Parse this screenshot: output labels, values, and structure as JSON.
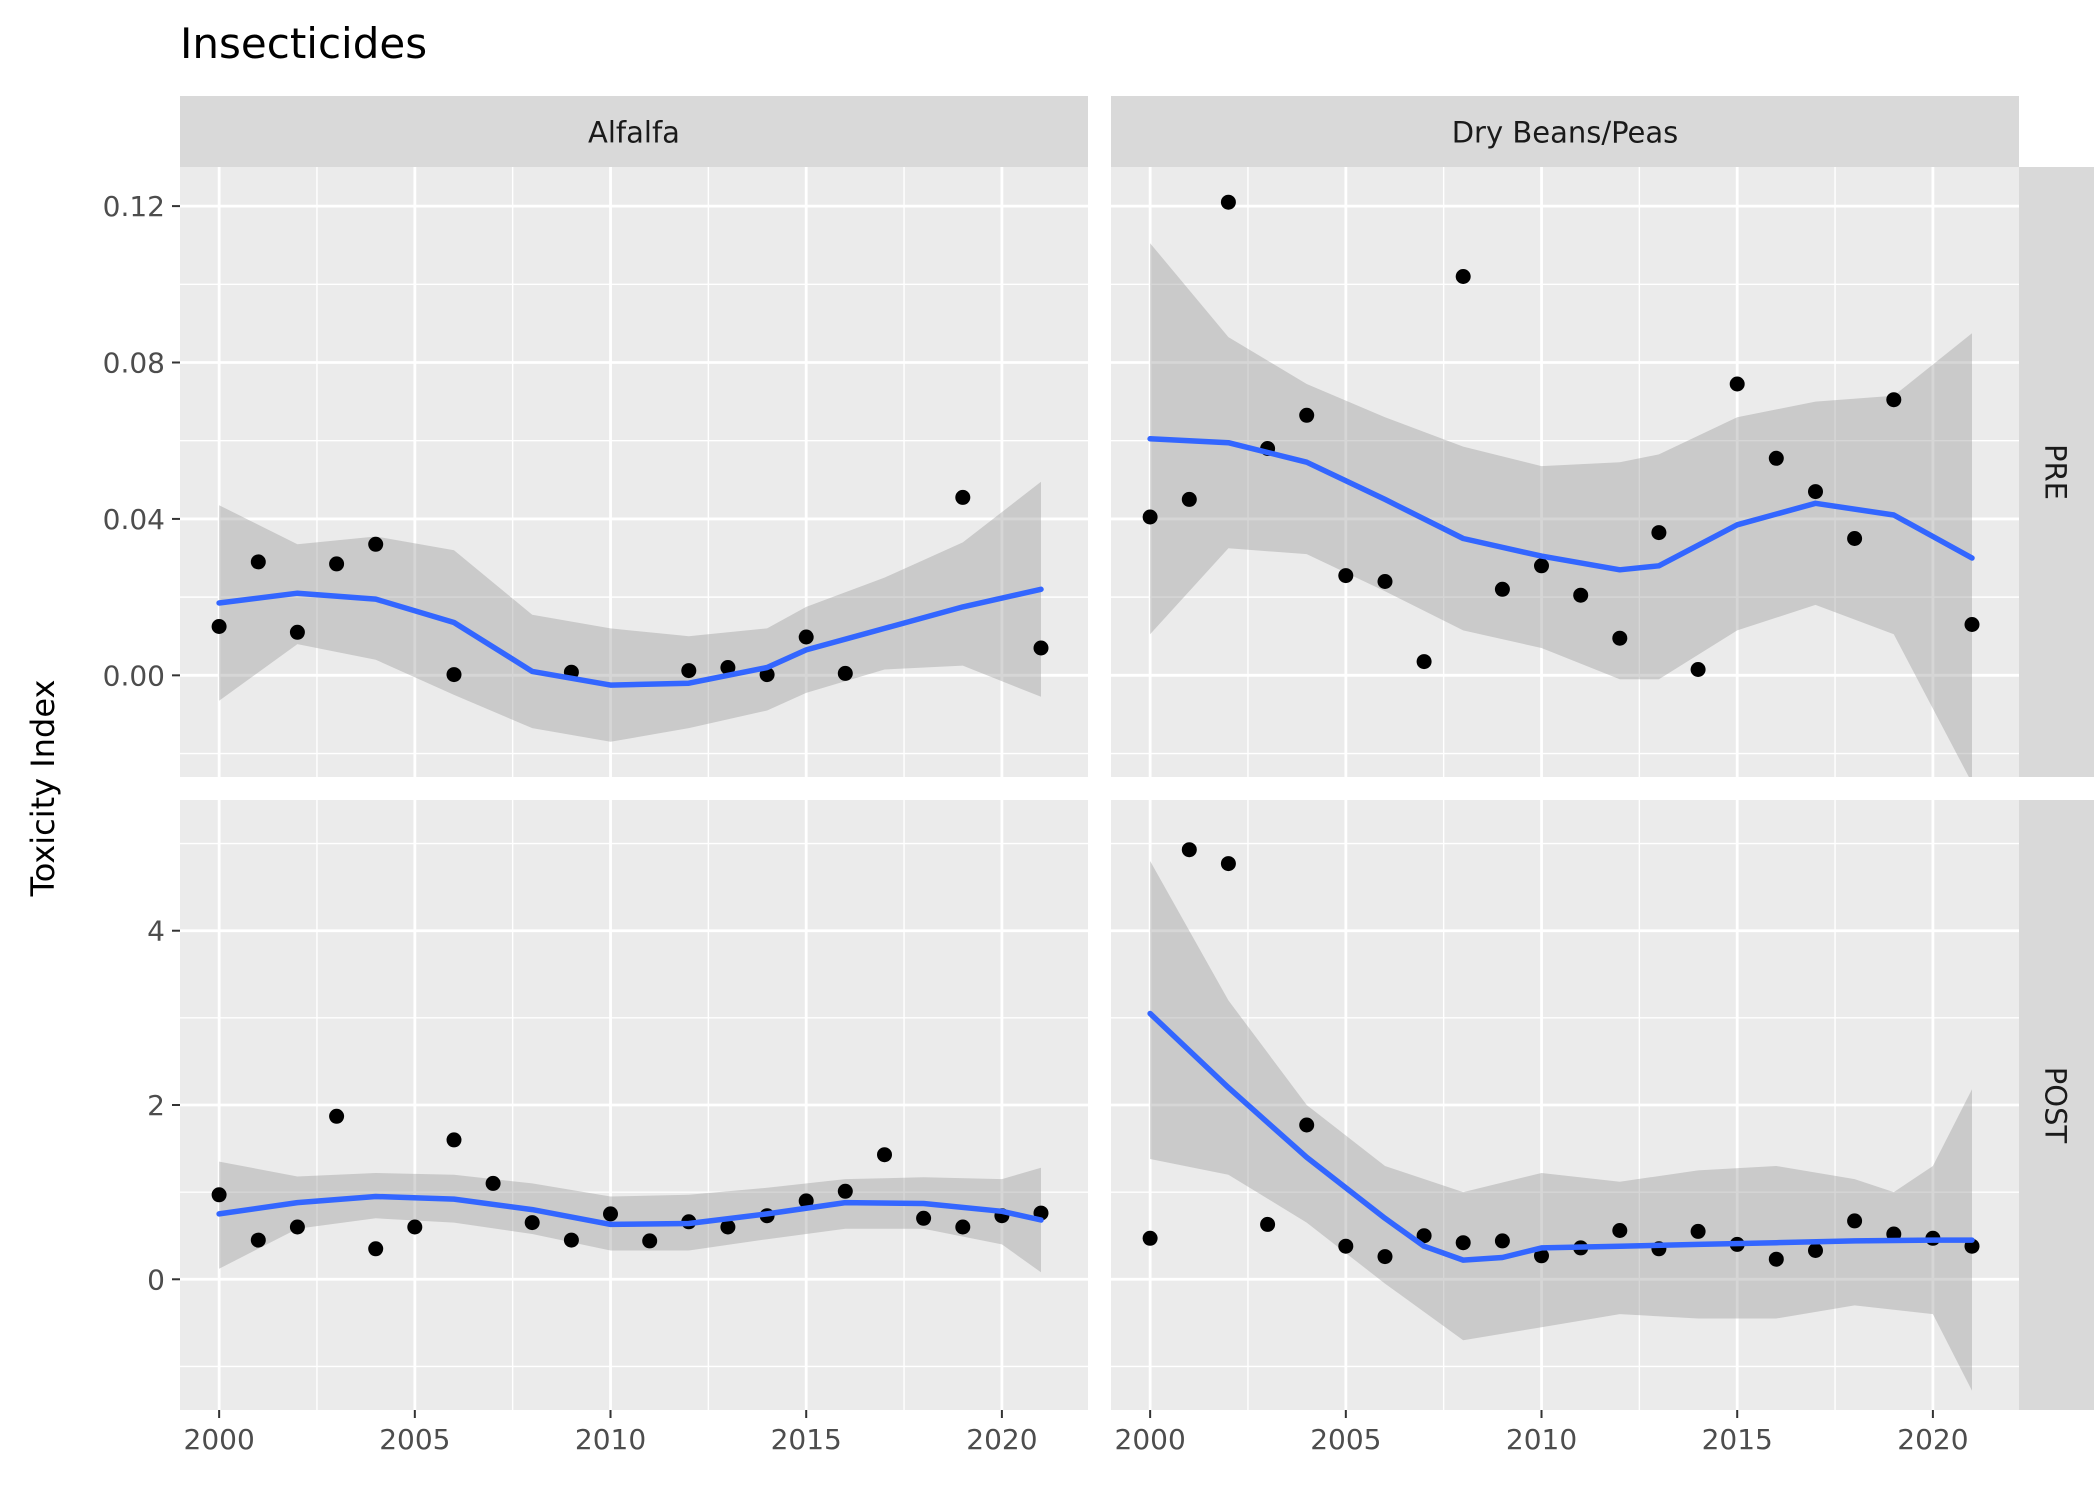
{
  "chart_data": {
    "type": "scatter",
    "title": "Insecticides",
    "xlabel": "",
    "ylabel": "Toxicity Index",
    "grid": true,
    "facet_columns": [
      "Alfalfa",
      "Dry Beans/Peas"
    ],
    "facet_rows": [
      "PRE",
      "POST"
    ],
    "x_ticks": [
      2000,
      2005,
      2010,
      2015,
      2020
    ],
    "x_range": [
      1999,
      2022.2
    ],
    "rows": [
      {
        "y_range": [
          -0.026,
          0.13
        ],
        "y_ticks": [
          0,
          0.04,
          0.08,
          0.12
        ],
        "y_tick_labels": [
          "0.00",
          "0.04",
          "0.08",
          "0.12"
        ]
      },
      {
        "y_range": [
          -1.5,
          5.5
        ],
        "y_ticks": [
          0,
          2,
          4
        ],
        "y_tick_labels": [
          "0",
          "2",
          "4"
        ]
      }
    ],
    "panels": [
      {
        "col": "Alfalfa",
        "row": "PRE",
        "points": [
          [
            2000,
            0.0125
          ],
          [
            2001,
            0.029
          ],
          [
            2002,
            0.011
          ],
          [
            2003,
            0.0285
          ],
          [
            2004,
            0.0335
          ],
          [
            2006,
            0.0002
          ],
          [
            2009,
            0.0008
          ],
          [
            2012,
            0.0012
          ],
          [
            2013,
            0.002
          ],
          [
            2014,
            0.0002
          ],
          [
            2015,
            0.0098
          ],
          [
            2016,
            0.0005
          ],
          [
            2019,
            0.0455
          ],
          [
            2021,
            0.007
          ]
        ],
        "smooth": [
          [
            2000,
            0.0185
          ],
          [
            2002,
            0.021
          ],
          [
            2004,
            0.0195
          ],
          [
            2006,
            0.0135
          ],
          [
            2008,
            0.001
          ],
          [
            2010,
            -0.0025
          ],
          [
            2012,
            -0.002
          ],
          [
            2014,
            0.002
          ],
          [
            2015,
            0.0065
          ],
          [
            2017,
            0.012
          ],
          [
            2019,
            0.0175
          ],
          [
            2021,
            0.022
          ]
        ],
        "band_upper": [
          [
            2000,
            0.0435
          ],
          [
            2002,
            0.0335
          ],
          [
            2004,
            0.0355
          ],
          [
            2006,
            0.032
          ],
          [
            2008,
            0.0155
          ],
          [
            2010,
            0.012
          ],
          [
            2012,
            0.01
          ],
          [
            2014,
            0.012
          ],
          [
            2015,
            0.0175
          ],
          [
            2017,
            0.025
          ],
          [
            2019,
            0.034
          ],
          [
            2021,
            0.0495
          ]
        ],
        "band_lower": [
          [
            2000,
            -0.0065
          ],
          [
            2002,
            0.008
          ],
          [
            2004,
            0.004
          ],
          [
            2006,
            -0.005
          ],
          [
            2008,
            -0.0135
          ],
          [
            2010,
            -0.017
          ],
          [
            2012,
            -0.0135
          ],
          [
            2014,
            -0.009
          ],
          [
            2015,
            -0.0045
          ],
          [
            2017,
            0.0015
          ],
          [
            2019,
            0.0025
          ],
          [
            2021,
            -0.0055
          ]
        ]
      },
      {
        "col": "Dry Beans/Peas",
        "row": "PRE",
        "points": [
          [
            2000,
            0.0405
          ],
          [
            2001,
            0.045
          ],
          [
            2002,
            0.121
          ],
          [
            2003,
            0.058
          ],
          [
            2004,
            0.0665
          ],
          [
            2005,
            0.0255
          ],
          [
            2006,
            0.024
          ],
          [
            2007,
            0.0035
          ],
          [
            2008,
            0.102
          ],
          [
            2009,
            0.022
          ],
          [
            2010,
            0.028
          ],
          [
            2011,
            0.0205
          ],
          [
            2012,
            0.0095
          ],
          [
            2013,
            0.0365
          ],
          [
            2014,
            0.0015
          ],
          [
            2015,
            0.0745
          ],
          [
            2016,
            0.0555
          ],
          [
            2017,
            0.047
          ],
          [
            2018,
            0.035
          ],
          [
            2019,
            0.0705
          ],
          [
            2021,
            0.013
          ]
        ],
        "smooth": [
          [
            2000,
            0.0605
          ],
          [
            2002,
            0.0595
          ],
          [
            2004,
            0.0545
          ],
          [
            2006,
            0.045
          ],
          [
            2008,
            0.035
          ],
          [
            2010,
            0.0305
          ],
          [
            2012,
            0.027
          ],
          [
            2013,
            0.028
          ],
          [
            2015,
            0.0385
          ],
          [
            2017,
            0.044
          ],
          [
            2019,
            0.041
          ],
          [
            2021,
            0.03
          ]
        ],
        "band_upper": [
          [
            2000,
            0.1105
          ],
          [
            2002,
            0.0865
          ],
          [
            2004,
            0.0745
          ],
          [
            2006,
            0.066
          ],
          [
            2008,
            0.0585
          ],
          [
            2010,
            0.0535
          ],
          [
            2012,
            0.0545
          ],
          [
            2013,
            0.0565
          ],
          [
            2015,
            0.066
          ],
          [
            2017,
            0.07
          ],
          [
            2019,
            0.0715
          ],
          [
            2021,
            0.0875
          ]
        ],
        "band_lower": [
          [
            2000,
            0.0105
          ],
          [
            2002,
            0.0325
          ],
          [
            2004,
            0.031
          ],
          [
            2006,
            0.0215
          ],
          [
            2008,
            0.0115
          ],
          [
            2010,
            0.007
          ],
          [
            2012,
            -0.001
          ],
          [
            2013,
            -0.001
          ],
          [
            2015,
            0.0115
          ],
          [
            2017,
            0.018
          ],
          [
            2019,
            0.0105
          ],
          [
            2021,
            -0.0275
          ]
        ]
      },
      {
        "col": "Alfalfa",
        "row": "POST",
        "points": [
          [
            2000,
            0.97
          ],
          [
            2001,
            0.45
          ],
          [
            2002,
            0.6
          ],
          [
            2003,
            1.87
          ],
          [
            2004,
            0.35
          ],
          [
            2005,
            0.6
          ],
          [
            2006,
            1.6
          ],
          [
            2007,
            1.1
          ],
          [
            2008,
            0.65
          ],
          [
            2009,
            0.45
          ],
          [
            2010,
            0.75
          ],
          [
            2011,
            0.44
          ],
          [
            2012,
            0.66
          ],
          [
            2013,
            0.6
          ],
          [
            2014,
            0.73
          ],
          [
            2015,
            0.9
          ],
          [
            2016,
            1.01
          ],
          [
            2017,
            1.43
          ],
          [
            2018,
            0.7
          ],
          [
            2019,
            0.6
          ],
          [
            2020,
            0.73
          ],
          [
            2021,
            0.76
          ]
        ],
        "smooth": [
          [
            2000,
            0.75
          ],
          [
            2002,
            0.88
          ],
          [
            2004,
            0.95
          ],
          [
            2006,
            0.92
          ],
          [
            2008,
            0.8
          ],
          [
            2010,
            0.63
          ],
          [
            2012,
            0.64
          ],
          [
            2014,
            0.75
          ],
          [
            2016,
            0.88
          ],
          [
            2018,
            0.87
          ],
          [
            2020,
            0.78
          ],
          [
            2021,
            0.68
          ]
        ],
        "band_upper": [
          [
            2000,
            1.35
          ],
          [
            2002,
            1.18
          ],
          [
            2004,
            1.22
          ],
          [
            2006,
            1.2
          ],
          [
            2008,
            1.1
          ],
          [
            2010,
            0.95
          ],
          [
            2012,
            0.97
          ],
          [
            2014,
            1.05
          ],
          [
            2016,
            1.15
          ],
          [
            2018,
            1.17
          ],
          [
            2020,
            1.15
          ],
          [
            2021,
            1.28
          ]
        ],
        "band_lower": [
          [
            2000,
            0.12
          ],
          [
            2002,
            0.58
          ],
          [
            2004,
            0.7
          ],
          [
            2006,
            0.65
          ],
          [
            2008,
            0.52
          ],
          [
            2010,
            0.33
          ],
          [
            2012,
            0.33
          ],
          [
            2014,
            0.46
          ],
          [
            2016,
            0.58
          ],
          [
            2018,
            0.58
          ],
          [
            2020,
            0.4
          ],
          [
            2021,
            0.08
          ]
        ]
      },
      {
        "col": "Dry Beans/Peas",
        "row": "POST",
        "points": [
          [
            2000,
            0.47
          ],
          [
            2001,
            4.93
          ],
          [
            2002,
            4.77
          ],
          [
            2003,
            0.63
          ],
          [
            2004,
            1.77
          ],
          [
            2005,
            0.38
          ],
          [
            2006,
            0.26
          ],
          [
            2007,
            0.5
          ],
          [
            2008,
            0.42
          ],
          [
            2009,
            0.44
          ],
          [
            2010,
            0.27
          ],
          [
            2011,
            0.36
          ],
          [
            2012,
            0.56
          ],
          [
            2013,
            0.35
          ],
          [
            2014,
            0.55
          ],
          [
            2015,
            0.4
          ],
          [
            2016,
            0.23
          ],
          [
            2017,
            0.33
          ],
          [
            2018,
            0.67
          ],
          [
            2019,
            0.52
          ],
          [
            2020,
            0.47
          ],
          [
            2021,
            0.38
          ]
        ],
        "smooth": [
          [
            2000,
            3.05
          ],
          [
            2002,
            2.2
          ],
          [
            2004,
            1.4
          ],
          [
            2006,
            0.7
          ],
          [
            2007,
            0.38
          ],
          [
            2008,
            0.22
          ],
          [
            2009,
            0.25
          ],
          [
            2010,
            0.36
          ],
          [
            2012,
            0.38
          ],
          [
            2014,
            0.4
          ],
          [
            2016,
            0.42
          ],
          [
            2018,
            0.44
          ],
          [
            2020,
            0.45
          ],
          [
            2021,
            0.45
          ]
        ],
        "band_upper": [
          [
            2000,
            4.8
          ],
          [
            2002,
            3.2
          ],
          [
            2004,
            2.0
          ],
          [
            2006,
            1.3
          ],
          [
            2008,
            1.0
          ],
          [
            2010,
            1.22
          ],
          [
            2012,
            1.12
          ],
          [
            2014,
            1.25
          ],
          [
            2016,
            1.3
          ],
          [
            2018,
            1.15
          ],
          [
            2019,
            1.0
          ],
          [
            2020,
            1.3
          ],
          [
            2021,
            2.18
          ]
        ],
        "band_lower": [
          [
            2000,
            1.38
          ],
          [
            2002,
            1.2
          ],
          [
            2004,
            0.65
          ],
          [
            2006,
            -0.05
          ],
          [
            2008,
            -0.7
          ],
          [
            2010,
            -0.55
          ],
          [
            2012,
            -0.4
          ],
          [
            2014,
            -0.45
          ],
          [
            2016,
            -0.45
          ],
          [
            2018,
            -0.3
          ],
          [
            2020,
            -0.4
          ],
          [
            2021,
            -1.28
          ]
        ]
      }
    ]
  }
}
